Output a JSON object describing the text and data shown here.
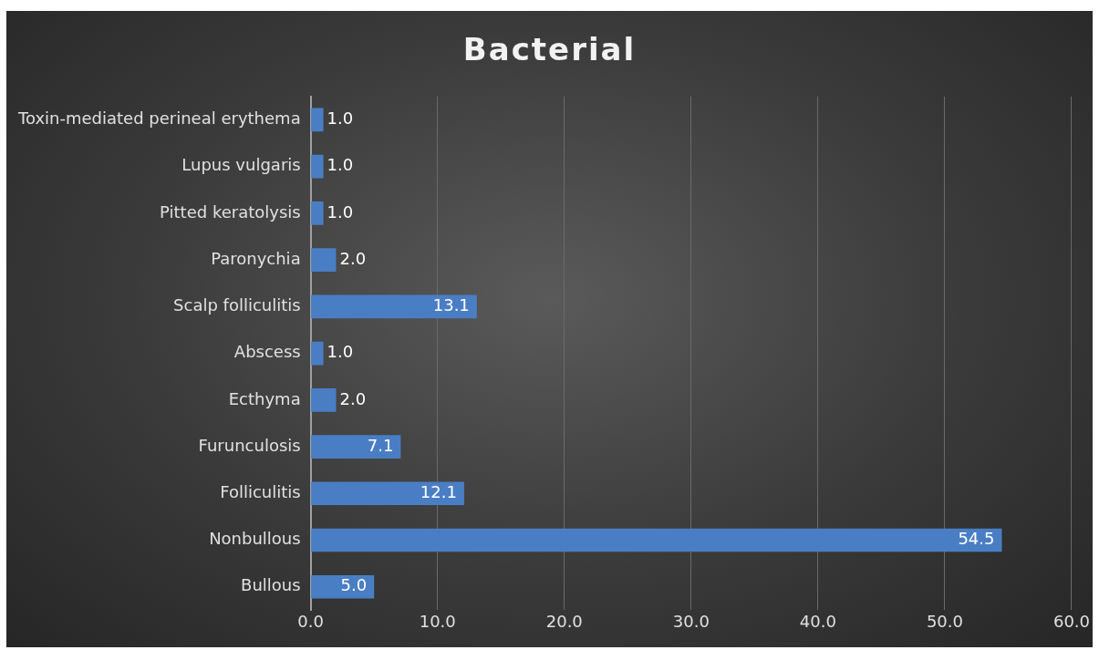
{
  "chart_data": {
    "type": "bar",
    "orientation": "horizontal",
    "title": "Bacterial",
    "categories": [
      "Toxin-mediated perineal erythema",
      "Lupus vulgaris",
      "Pitted keratolysis",
      "Paronychia",
      "Scalp folliculitis",
      "Abscess",
      "Ecthyma",
      "Furunculosis",
      "Folliculitis",
      "Nonbullous",
      "Bullous"
    ],
    "values": [
      1.0,
      1.0,
      1.0,
      2.0,
      13.1,
      1.0,
      2.0,
      7.1,
      12.1,
      54.5,
      5.0
    ],
    "color": "#4a7ec4",
    "xlim": [
      0,
      60
    ],
    "xticks": [
      {
        "value": 0,
        "label": "0.0"
      },
      {
        "value": 10,
        "label": "10.0"
      },
      {
        "value": 20,
        "label": "20.0"
      },
      {
        "value": 30,
        "label": "30.0"
      },
      {
        "value": 40,
        "label": "40.0"
      },
      {
        "value": 50,
        "label": "50.0"
      },
      {
        "value": 60,
        "label": "60.0"
      }
    ],
    "value_labels": [
      "1.0",
      "1.0",
      "1.0",
      "2.0",
      "13.1",
      "1.0",
      "2.0",
      "7.1",
      "12.1",
      "54.5",
      "5.0"
    ],
    "grid": "x",
    "legend": false
  }
}
